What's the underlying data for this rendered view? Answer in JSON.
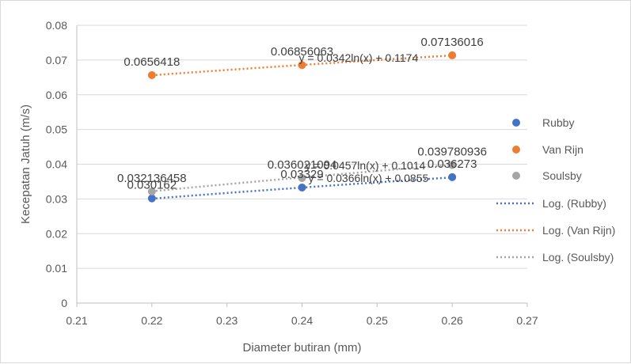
{
  "chart_data": {
    "type": "scatter",
    "title": "",
    "xlabel": "Diameter butiran (mm)",
    "ylabel": "Kecepatan Jatuh (m/s)",
    "xlim": [
      0.21,
      0.27
    ],
    "ylim": [
      0,
      0.08
    ],
    "x_ticks": [
      "0.21",
      "0.22",
      "0.23",
      "0.24",
      "0.25",
      "0.26",
      "0.27"
    ],
    "y_ticks": [
      "0",
      "0.01",
      "0.02",
      "0.03",
      "0.04",
      "0.05",
      "0.06",
      "0.07",
      "0.08"
    ],
    "grid": "horizontal",
    "legend_position": "right",
    "series": [
      {
        "name": "Rubby",
        "color": "#4472C4",
        "x": [
          0.22,
          0.24,
          0.26
        ],
        "y": [
          0.030162,
          0.03329,
          0.036273
        ],
        "labels": [
          "0.030162",
          "0.03329",
          "0.036273"
        ]
      },
      {
        "name": "Van Rijn",
        "color": "#ED7D31",
        "x": [
          0.22,
          0.24,
          0.26
        ],
        "y": [
          0.0656418,
          0.06856063,
          0.07136016
        ],
        "labels": [
          "0.0656418",
          "0.06856063",
          "0.07136016"
        ]
      },
      {
        "name": "Soulsby",
        "color": "#A5A5A5",
        "x": [
          0.22,
          0.24,
          0.26
        ],
        "y": [
          0.032136458,
          0.036021094,
          0.039780936
        ],
        "labels": [
          "0.032136458",
          "0.036021094",
          "0.039780936"
        ]
      }
    ],
    "trendlines": [
      {
        "name": "Log. (Rubby)",
        "color": "#4472C4",
        "a": 0.0366,
        "b": 0.0855,
        "equation": "y = 0.0366ln(x) + 0.0855"
      },
      {
        "name": "Log. (Van Rijn)",
        "color": "#ED7D31",
        "a": 0.0342,
        "b": 0.1174,
        "equation": "y = 0.0342ln(x) + 0.1174"
      },
      {
        "name": "Log. (Soulsby)",
        "color": "#A5A5A5",
        "a": 0.0457,
        "b": 0.1014,
        "equation": "y = 0.0457ln(x) + 0.1014"
      }
    ]
  }
}
